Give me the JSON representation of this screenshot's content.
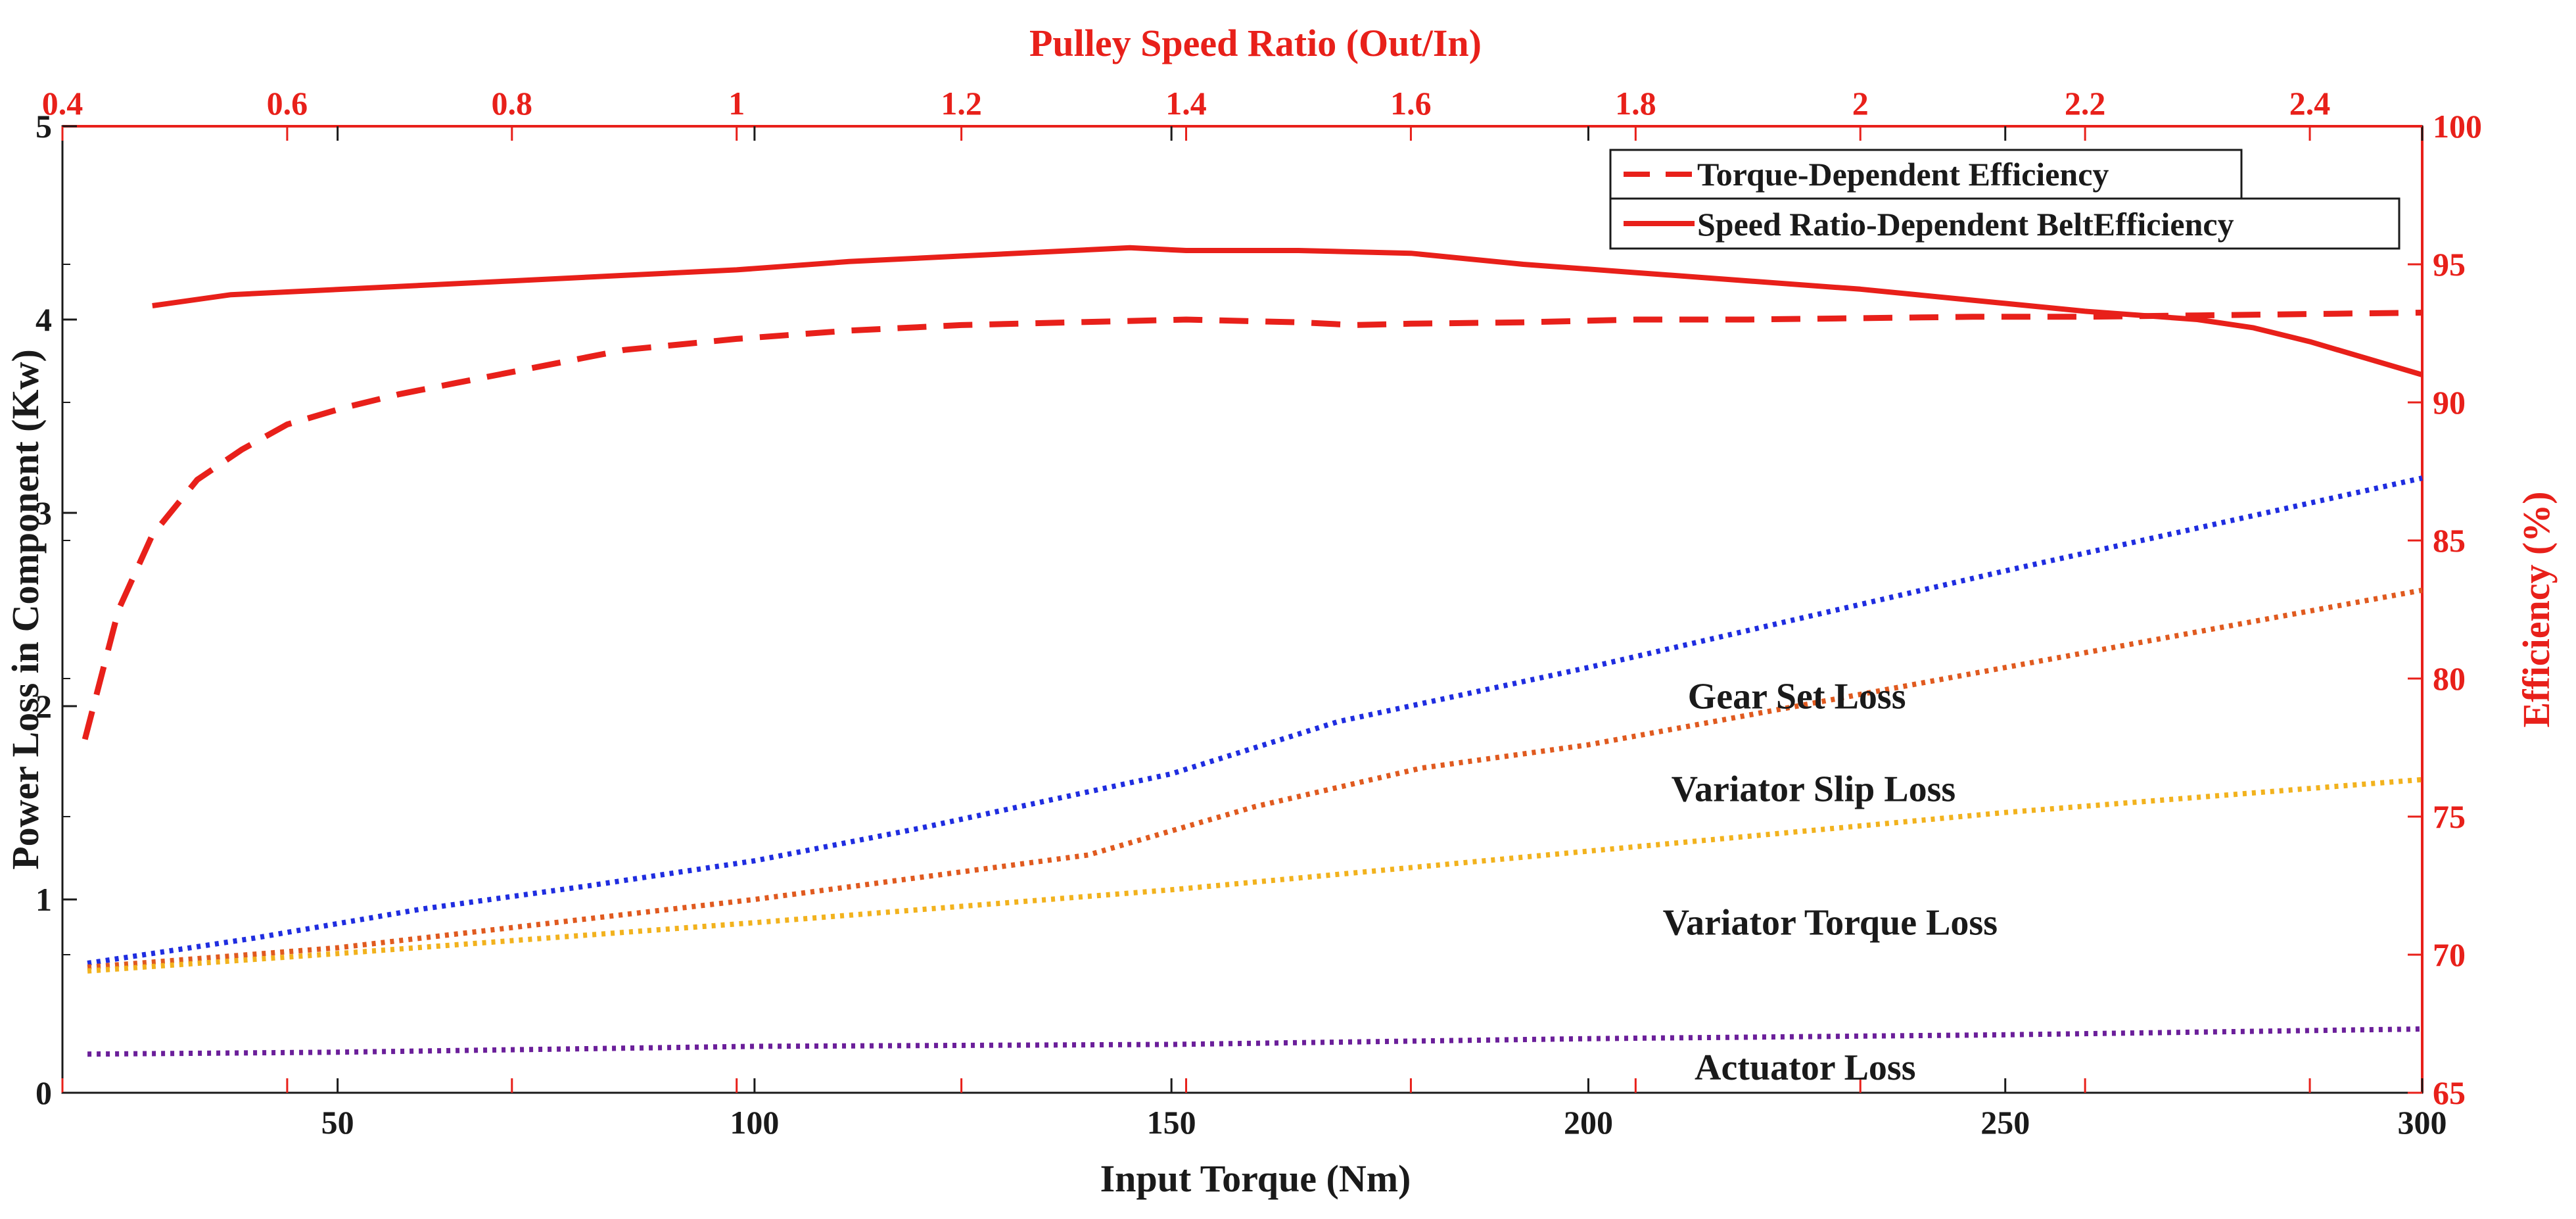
{
  "chart_data": {
    "type": "line",
    "title": "",
    "xlabel": "Input Torque (Nm)",
    "ylabel": "Power Loss in Component (Kw)",
    "x2label": "Pulley Speed Ratio (Out/In)",
    "y2label": "Efficiency (%)",
    "xlim": [
      17,
      300
    ],
    "ylim": [
      0,
      5
    ],
    "x2lim": [
      0.4,
      2.5
    ],
    "y2lim": [
      65,
      100
    ],
    "xticks": [
      50,
      100,
      150,
      200,
      250,
      300
    ],
    "yticks": [
      0,
      1,
      2,
      3,
      4,
      5
    ],
    "x2ticks": [
      0.4,
      0.6,
      0.8,
      1,
      1.2,
      1.4,
      1.6,
      1.8,
      2,
      2.2,
      2.4
    ],
    "y2ticks": [
      65,
      70,
      75,
      80,
      85,
      90,
      95,
      100
    ],
    "xtick_labels": [
      "50",
      "100",
      "150",
      "200",
      "250",
      "300"
    ],
    "ytick_labels": [
      "0",
      "1",
      "2",
      "3",
      "4",
      "5"
    ],
    "x2tick_labels": [
      "0.4",
      "0.6",
      "0.8",
      "1",
      "1.2",
      "1.4",
      "1.6",
      "1.8",
      "2",
      "2.2",
      "2.4"
    ],
    "y2tick_labels": [
      "65",
      "70",
      "75",
      "80",
      "85",
      "90",
      "95",
      "100"
    ],
    "grid": false,
    "legend_position": "top-right",
    "series": [
      {
        "name": "Torque-Dependent Efficiency",
        "axis": "top-right",
        "style": "dashed",
        "color": "#e8201a",
        "x": [
          0.42,
          0.45,
          0.48,
          0.52,
          0.56,
          0.6,
          0.65,
          0.7,
          0.75,
          0.8,
          0.9,
          1.0,
          1.1,
          1.2,
          1.3,
          1.4,
          1.5,
          1.55,
          1.6,
          1.7,
          1.8,
          1.9,
          2.0,
          2.1,
          2.2,
          2.3,
          2.4,
          2.5
        ],
        "y": [
          77.8,
          82.5,
          85.2,
          87.2,
          88.3,
          89.2,
          89.8,
          90.3,
          90.7,
          91.1,
          91.9,
          92.3,
          92.6,
          92.8,
          92.9,
          93.0,
          92.9,
          92.8,
          92.85,
          92.9,
          93.0,
          93.0,
          93.05,
          93.1,
          93.1,
          93.15,
          93.2,
          93.25
        ]
      },
      {
        "name": "Speed Ratio-Dependent BeltEfficiency",
        "axis": "top-right",
        "style": "solid",
        "color": "#e8201a",
        "x": [
          0.48,
          0.55,
          0.6,
          0.7,
          0.8,
          0.9,
          1.0,
          1.1,
          1.2,
          1.3,
          1.35,
          1.4,
          1.5,
          1.6,
          1.65,
          1.7,
          1.8,
          1.9,
          2.0,
          2.1,
          2.2,
          2.3,
          2.35,
          2.4,
          2.5
        ],
        "y": [
          93.5,
          93.9,
          94.0,
          94.2,
          94.4,
          94.6,
          94.8,
          95.1,
          95.3,
          95.5,
          95.6,
          95.5,
          95.5,
          95.4,
          95.2,
          95.0,
          94.7,
          94.4,
          94.1,
          93.7,
          93.3,
          93.0,
          92.7,
          92.2,
          91.0
        ]
      },
      {
        "name": "Gear Set Loss",
        "axis": "bottom-left",
        "style": "dotted",
        "color": "#1f2de0",
        "x": [
          20,
          40,
          60,
          80,
          100,
          120,
          150,
          170,
          200,
          250,
          300
        ],
        "y": [
          0.67,
          0.8,
          0.95,
          1.07,
          1.2,
          1.37,
          1.65,
          1.92,
          2.2,
          2.7,
          3.18
        ]
      },
      {
        "name": "Variator Slip Loss",
        "axis": "bottom-left",
        "style": "dotted",
        "color": "#e05a1f",
        "x": [
          20,
          50,
          100,
          140,
          160,
          180,
          200,
          250,
          300
        ],
        "y": [
          0.65,
          0.75,
          1.0,
          1.23,
          1.48,
          1.68,
          1.8,
          2.2,
          2.6
        ]
      },
      {
        "name": "Variator Torque Loss",
        "axis": "bottom-left",
        "style": "dotted",
        "color": "#f2b21d",
        "x": [
          20,
          50,
          100,
          150,
          200,
          250,
          300
        ],
        "y": [
          0.63,
          0.72,
          0.88,
          1.05,
          1.25,
          1.45,
          1.62
        ]
      },
      {
        "name": "Actuator Loss",
        "axis": "bottom-left",
        "style": "dotted",
        "color": "#6b1f9a",
        "x": [
          20,
          50,
          100,
          150,
          200,
          250,
          300
        ],
        "y": [
          0.2,
          0.21,
          0.24,
          0.25,
          0.28,
          0.3,
          0.33
        ]
      }
    ],
    "annotations": [
      {
        "text": "Gear Set Loss",
        "x": 225,
        "y": 2.05
      },
      {
        "text": "Variator Slip Loss",
        "x": 227,
        "y": 1.57
      },
      {
        "text": "Variator Torque Loss",
        "x": 229,
        "y": 0.88
      },
      {
        "text": "Actuator Loss",
        "x": 226,
        "y": 0.13
      }
    ],
    "legend": [
      {
        "label": "Torque-Dependent Efficiency",
        "style": "dashed",
        "color": "#e8201a"
      },
      {
        "label": "Speed Ratio-Dependent BeltEfficiency",
        "style": "solid",
        "color": "#e8201a"
      }
    ]
  }
}
